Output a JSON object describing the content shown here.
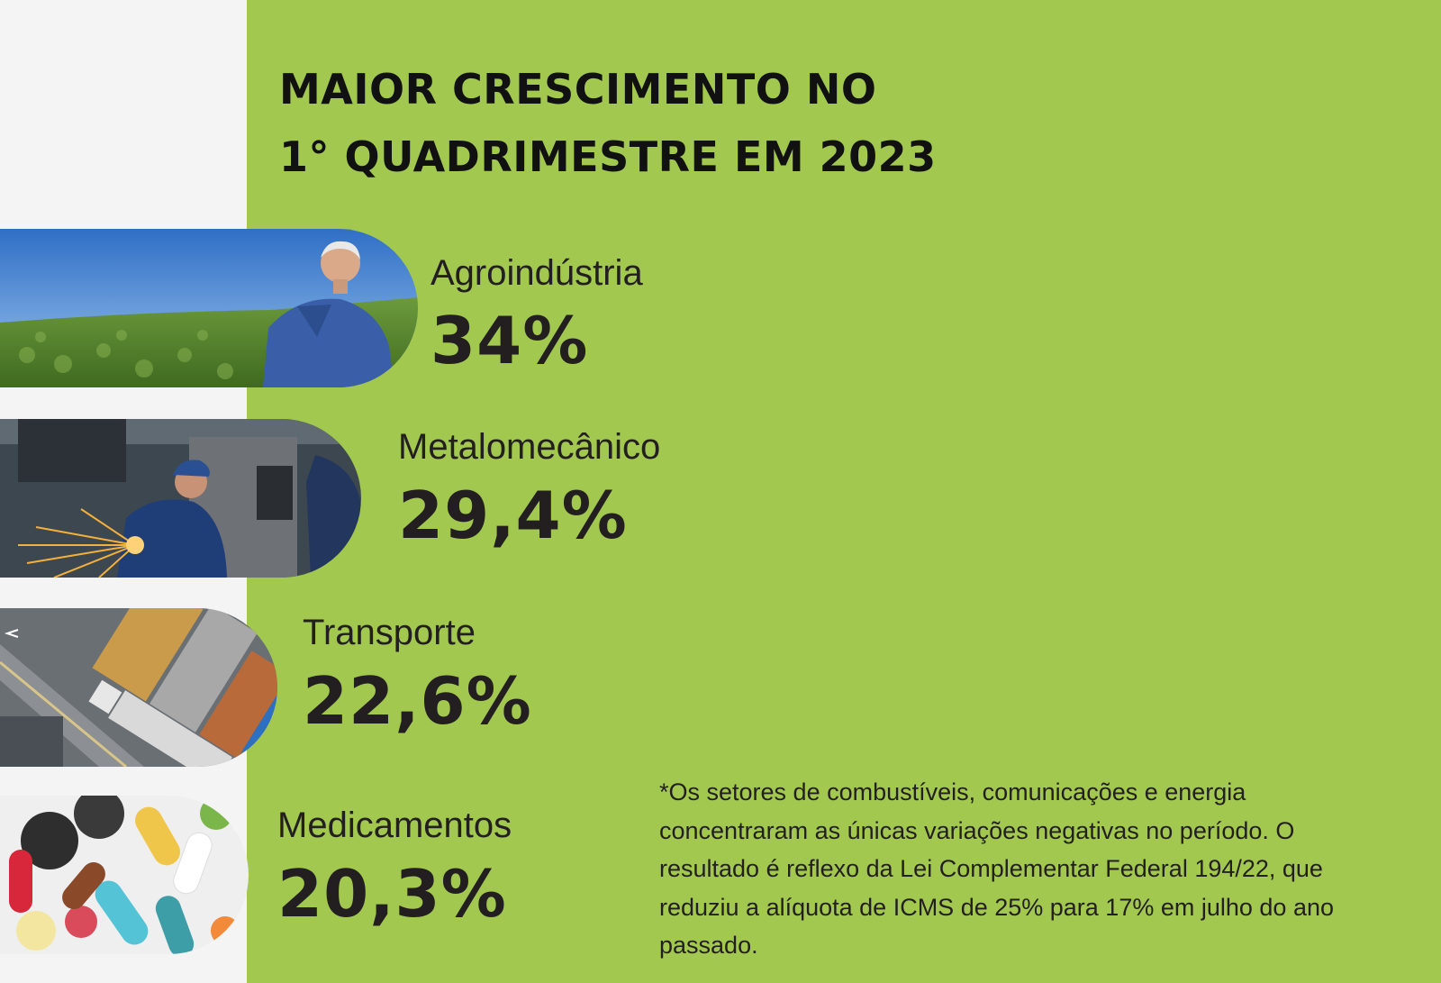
{
  "title": {
    "line1": "MAIOR CRESCIMENTO NO",
    "line2": "1° QUADRIMESTRE EM 2023"
  },
  "chart_data": {
    "type": "bar",
    "categories": [
      "Agroindústria",
      "Metalomecânico",
      "Transporte",
      "Medicamentos"
    ],
    "values": [
      34,
      29.4,
      22.6,
      20.3
    ],
    "value_labels": [
      "34%",
      "29,4%",
      "22,6%",
      "20,3%"
    ],
    "unit": "%",
    "title": "MAIOR CRESCIMENTO NO 1° QUADRIMESTRE EM 2023"
  },
  "sectors": [
    {
      "name": "Agroindústria",
      "value_label": "34%",
      "icon": "farmer-in-field-photo"
    },
    {
      "name": "Metalomecânico",
      "value_label": "29,4%",
      "icon": "metalworker-grinding-photo"
    },
    {
      "name": "Transporte",
      "value_label": "22,6%",
      "icon": "container-truck-photo"
    },
    {
      "name": "Medicamentos",
      "value_label": "20,3%",
      "icon": "pills-photo"
    }
  ],
  "footnote": "*Os setores de combustíveis, comunicações e energia concentraram as únicas variações negativas no período. O resultado é reflexo da Lei Complementar Federal 194/22, que reduziu a alíquota de ICMS de 25% para 17% em julho do ano passado.",
  "colors": {
    "panel": "#a2c84f",
    "background": "#f4f4f4",
    "text": "#231f20"
  }
}
